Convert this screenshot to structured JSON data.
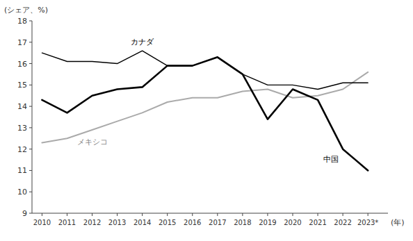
{
  "chart_data": {
    "type": "line",
    "x": [
      2010,
      2011,
      2012,
      2013,
      2014,
      2015,
      2016,
      2017,
      2018,
      2019,
      2020,
      2021,
      2022,
      2023
    ],
    "series": [
      {
        "name": "カナダ",
        "color": "#000000",
        "values": [
          16.5,
          16.1,
          16.1,
          16.0,
          16.6,
          15.9,
          15.9,
          16.3,
          15.5,
          15.0,
          15.0,
          14.8,
          15.1,
          15.1
        ]
      },
      {
        "name": "メキシコ",
        "color": "#aaaaaa",
        "values": [
          12.3,
          12.5,
          12.9,
          13.3,
          13.7,
          14.2,
          14.4,
          14.4,
          14.7,
          14.8,
          14.4,
          14.5,
          14.8,
          15.6
        ]
      },
      {
        "name": "中国",
        "color": "#000000",
        "values": [
          14.3,
          13.7,
          14.5,
          14.8,
          14.9,
          15.9,
          15.9,
          16.3,
          15.5,
          13.4,
          14.8,
          14.3,
          12.0,
          11.0
        ]
      }
    ],
    "x_label": "(年)",
    "y_label": "(シェア、%)",
    "xlim": [
      2009.6,
      2023.8
    ],
    "xticks": [
      2010,
      2011,
      2012,
      2013,
      2014,
      2015,
      2016,
      2017,
      2018,
      2019,
      2020,
      2021,
      2022,
      {
        "value": 2023,
        "label": "2023*"
      }
    ],
    "ylim": [
      9,
      18
    ],
    "yticks": [
      9,
      10,
      11,
      12,
      13,
      14,
      15,
      16,
      17,
      18
    ],
    "grid": false
  }
}
